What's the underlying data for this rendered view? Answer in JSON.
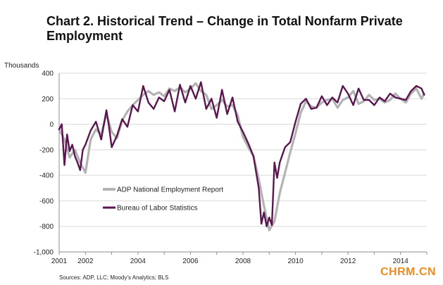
{
  "title": "Chart 2. Historical Trend – Change in Total Nonfarm Private Employment",
  "source": "Sources: ADP, LLC; Moody’s Analytics; BLS",
  "watermark": "CHRM.CN",
  "chart_data": {
    "type": "line",
    "title": "Chart 2. Historical Trend – Change in Total Nonfarm Private Employment",
    "ylabel": "Thousands",
    "xlabel": "",
    "ylim": [
      -1000,
      400
    ],
    "xlim": [
      2001,
      2015
    ],
    "yticks": [
      "400",
      "200",
      "0",
      "-200",
      "-400",
      "-600",
      "-800",
      "-1,000"
    ],
    "ytick_values": [
      400,
      200,
      0,
      -200,
      -400,
      -600,
      -800,
      -1000
    ],
    "xticks": [
      "2001",
      "2002",
      "2004",
      "2006",
      "2008",
      "2010",
      "2012",
      "2014"
    ],
    "xtick_values": [
      2001,
      2002,
      2004,
      2006,
      2008,
      2010,
      2012,
      2014
    ],
    "grid": true,
    "legend_position": "lower-left",
    "colors": {
      "adp": "#b3b3b3",
      "bls": "#5b1650"
    },
    "series": [
      {
        "name": "ADP National Employment Report",
        "x": [
          2001.0,
          2001.2,
          2001.4,
          2001.6,
          2001.8,
          2002.0,
          2002.2,
          2002.4,
          2002.6,
          2002.8,
          2003.0,
          2003.2,
          2003.4,
          2003.6,
          2003.8,
          2004.0,
          2004.2,
          2004.4,
          2004.6,
          2004.8,
          2005.0,
          2005.2,
          2005.4,
          2005.6,
          2005.8,
          2006.0,
          2006.2,
          2006.4,
          2006.6,
          2006.8,
          2007.0,
          2007.2,
          2007.4,
          2007.6,
          2007.8,
          2008.0,
          2008.2,
          2008.4,
          2008.6,
          2008.8,
          2009.0,
          2009.2,
          2009.4,
          2009.6,
          2009.8,
          2010.0,
          2010.2,
          2010.4,
          2010.6,
          2010.8,
          2011.0,
          2011.2,
          2011.4,
          2011.6,
          2011.8,
          2012.0,
          2012.2,
          2012.4,
          2012.6,
          2012.8,
          2013.0,
          2013.2,
          2013.4,
          2013.6,
          2013.8,
          2014.0,
          2014.2,
          2014.4,
          2014.6,
          2014.8,
          2014.9
        ],
        "values": [
          -40,
          -120,
          -260,
          -200,
          -300,
          -380,
          -120,
          -40,
          -80,
          80,
          -60,
          -110,
          30,
          100,
          150,
          190,
          230,
          260,
          230,
          250,
          220,
          280,
          260,
          290,
          250,
          280,
          320,
          260,
          230,
          120,
          150,
          190,
          140,
          150,
          70,
          -100,
          -180,
          -250,
          -430,
          -640,
          -830,
          -760,
          -540,
          -380,
          -220,
          -70,
          90,
          180,
          140,
          130,
          170,
          190,
          200,
          130,
          190,
          210,
          260,
          160,
          180,
          230,
          190,
          200,
          170,
          190,
          240,
          200,
          170,
          240,
          280,
          200,
          240
        ]
      },
      {
        "name": "Bureau of Labor Statistics",
        "x": [
          2001.0,
          2001.1,
          2001.2,
          2001.3,
          2001.4,
          2001.5,
          2001.6,
          2001.7,
          2001.8,
          2001.9,
          2002.0,
          2002.2,
          2002.4,
          2002.6,
          2002.8,
          2002.9,
          2003.0,
          2003.2,
          2003.4,
          2003.6,
          2003.8,
          2004.0,
          2004.2,
          2004.4,
          2004.6,
          2004.8,
          2005.0,
          2005.2,
          2005.4,
          2005.6,
          2005.8,
          2006.0,
          2006.2,
          2006.4,
          2006.6,
          2006.8,
          2007.0,
          2007.2,
          2007.4,
          2007.6,
          2007.8,
          2008.0,
          2008.2,
          2008.4,
          2008.6,
          2008.7,
          2008.8,
          2008.9,
          2009.0,
          2009.1,
          2009.2,
          2009.3,
          2009.4,
          2009.6,
          2009.8,
          2010.0,
          2010.2,
          2010.4,
          2010.6,
          2010.8,
          2011.0,
          2011.2,
          2011.4,
          2011.6,
          2011.8,
          2012.0,
          2012.2,
          2012.4,
          2012.6,
          2012.8,
          2013.0,
          2013.2,
          2013.4,
          2013.6,
          2013.8,
          2014.0,
          2014.2,
          2014.4,
          2014.6,
          2014.8,
          2014.9
        ],
        "values": [
          -40,
          0,
          -320,
          -80,
          -210,
          -160,
          -250,
          -300,
          -360,
          -200,
          -160,
          -50,
          20,
          -120,
          110,
          -20,
          -180,
          -90,
          40,
          -20,
          150,
          100,
          300,
          170,
          120,
          210,
          180,
          270,
          100,
          310,
          170,
          300,
          200,
          330,
          120,
          200,
          50,
          270,
          80,
          210,
          20,
          -60,
          -150,
          -250,
          -500,
          -780,
          -690,
          -800,
          -730,
          -790,
          -300,
          -420,
          -300,
          -180,
          -140,
          20,
          160,
          200,
          120,
          130,
          220,
          150,
          210,
          170,
          300,
          240,
          150,
          280,
          190,
          190,
          150,
          210,
          180,
          240,
          210,
          200,
          190,
          260,
          300,
          280,
          230
        ]
      }
    ]
  }
}
